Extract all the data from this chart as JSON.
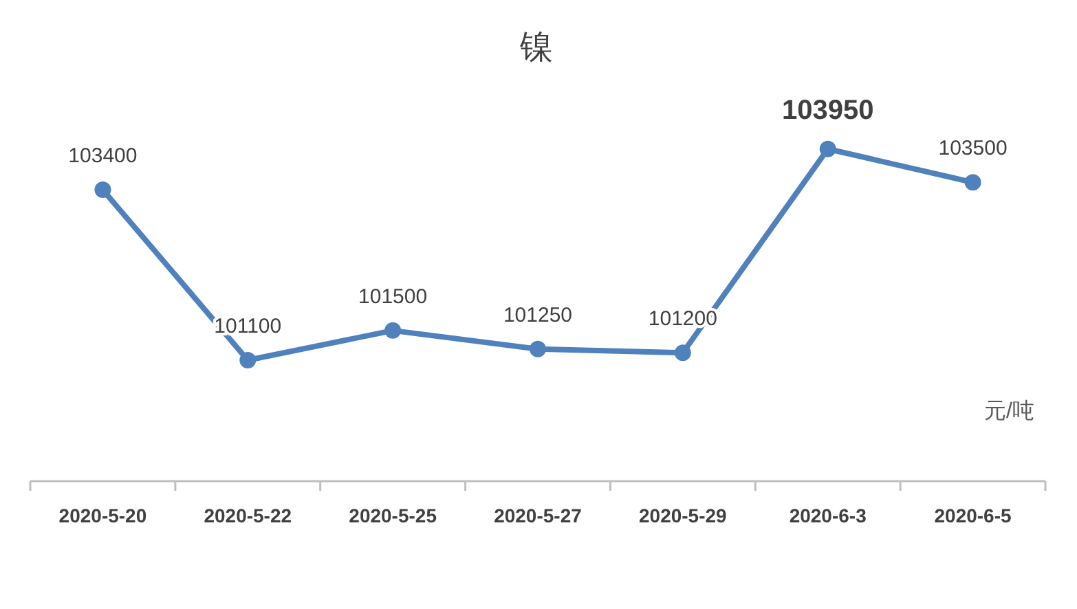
{
  "chart_data": {
    "type": "line",
    "title": "镍",
    "categories": [
      "2020-5-20",
      "2020-5-22",
      "2020-5-25",
      "2020-5-27",
      "2020-5-29",
      "2020-6-3",
      "2020-6-5"
    ],
    "series": [
      {
        "color": "#4f81bd",
        "values": [
          103400,
          101100,
          101500,
          101250,
          101200,
          103950,
          103500
        ]
      }
    ],
    "data_labels": true,
    "marker": "circle",
    "line_style": "solid",
    "annotations": [
      "元/吨"
    ]
  }
}
